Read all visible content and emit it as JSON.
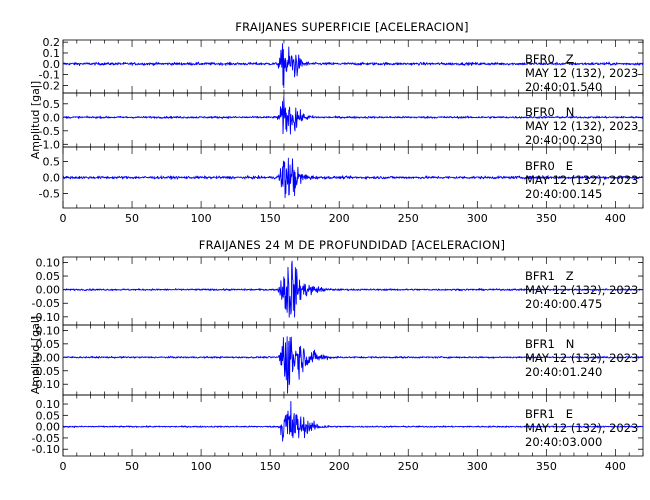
{
  "chart_data": [
    {
      "type": "line",
      "title": "FRAIJANES SUPERFICIE [ACELERACION]",
      "ylabel": "Amplitud [gal]",
      "xlim": [
        0,
        420
      ],
      "x_ticks": [
        "0",
        "50",
        "100",
        "150",
        "200",
        "250",
        "300",
        "350",
        "400"
      ],
      "line_color": "#0000ff",
      "series": [
        {
          "name": "BFR0 Z",
          "station": "BFR0",
          "component": "Z",
          "date": "MAY 12 (132), 2023",
          "time": "20:40:01.540",
          "ylim": [
            -0.27,
            0.22
          ],
          "y_ticks": [
            "0.2",
            "0.1",
            "0.0",
            "-0.1",
            "-0.2"
          ],
          "y_tick_values": [
            0.2,
            0.1,
            0.0,
            -0.1,
            -0.2
          ],
          "noise_amplitude": 0.012,
          "onset": 154,
          "peak": 160,
          "peak_amplitude": 0.23,
          "decay": 7,
          "secondary": 168,
          "secondary_amplitude": 0.09
        },
        {
          "name": "BFR0 N",
          "station": "BFR0",
          "component": "N",
          "date": "MAY 12 (132), 2023",
          "time": "20:40:00.230",
          "ylim": [
            -1.1,
            0.9
          ],
          "y_ticks": [
            "0.5",
            "0.0",
            "-0.5",
            "-1.0"
          ],
          "y_tick_values": [
            0.5,
            0.0,
            -0.5,
            -1.0
          ],
          "noise_amplitude": 0.035,
          "onset": 154,
          "peak": 160,
          "peak_amplitude": 0.8,
          "decay": 8,
          "secondary": 168,
          "secondary_amplitude": 0.28
        },
        {
          "name": "BFR0 E",
          "station": "BFR0",
          "component": "E",
          "date": "MAY 12 (132), 2023",
          "time": "20:40:00.145",
          "ylim": [
            -0.95,
            0.95
          ],
          "y_ticks": [
            "0.5",
            "0.0",
            "-0.5"
          ],
          "y_tick_values": [
            0.5,
            0.0,
            -0.5
          ],
          "noise_amplitude": 0.04,
          "onset": 154,
          "peak": 160,
          "peak_amplitude": 0.85,
          "decay": 8,
          "secondary": 167,
          "secondary_amplitude": 0.3
        }
      ]
    },
    {
      "type": "line",
      "title": "FRAIJANES 24 M DE PROFUNDIDAD [ACELERACION]",
      "ylabel": "Amplitud [gal]",
      "xlim": [
        0,
        420
      ],
      "x_ticks": [
        "0",
        "50",
        "100",
        "150",
        "200",
        "250",
        "300",
        "350",
        "400"
      ],
      "line_color": "#0000ff",
      "series": [
        {
          "name": "BFR1 Z",
          "station": "BFR1",
          "component": "Z",
          "date": "MAY 12 (132), 2023",
          "time": "20:40:00.475",
          "ylim": [
            -0.13,
            0.12
          ],
          "y_ticks": [
            "0.10",
            "0.05",
            "0.00",
            "-0.05",
            "-0.10"
          ],
          "y_tick_values": [
            0.1,
            0.05,
            0.0,
            -0.05,
            -0.1
          ],
          "noise_amplitude": 0.003,
          "onset": 155,
          "peak": 161,
          "peak_amplitude": 0.12,
          "decay": 10,
          "secondary": 166,
          "secondary_amplitude": 0.06
        },
        {
          "name": "BFR1 N",
          "station": "BFR1",
          "component": "N",
          "date": "MAY 12 (132), 2023",
          "time": "20:40:01.240",
          "ylim": [
            -0.14,
            0.12
          ],
          "y_ticks": [
            "0.10",
            "0.05",
            "0.00",
            "-0.05",
            "-0.10"
          ],
          "y_tick_values": [
            0.1,
            0.05,
            0.0,
            -0.05,
            -0.1
          ],
          "noise_amplitude": 0.003,
          "onset": 155,
          "peak": 164,
          "peak_amplitude": 0.13,
          "decay": 10,
          "secondary": 160,
          "secondary_amplitude": 0.06
        },
        {
          "name": "BFR1 E",
          "station": "BFR1",
          "component": "E",
          "date": "MAY 12 (132), 2023",
          "time": "20:40:03.000",
          "ylim": [
            -0.13,
            0.14
          ],
          "y_ticks": [
            "0.10",
            "0.05",
            "0.00",
            "-0.05",
            "-0.10"
          ],
          "y_tick_values": [
            0.1,
            0.05,
            0.0,
            -0.05,
            -0.1
          ],
          "noise_amplitude": 0.003,
          "onset": 156,
          "peak": 164,
          "peak_amplitude": 0.13,
          "decay": 9,
          "secondary": 160,
          "secondary_amplitude": 0.05
        }
      ]
    }
  ]
}
